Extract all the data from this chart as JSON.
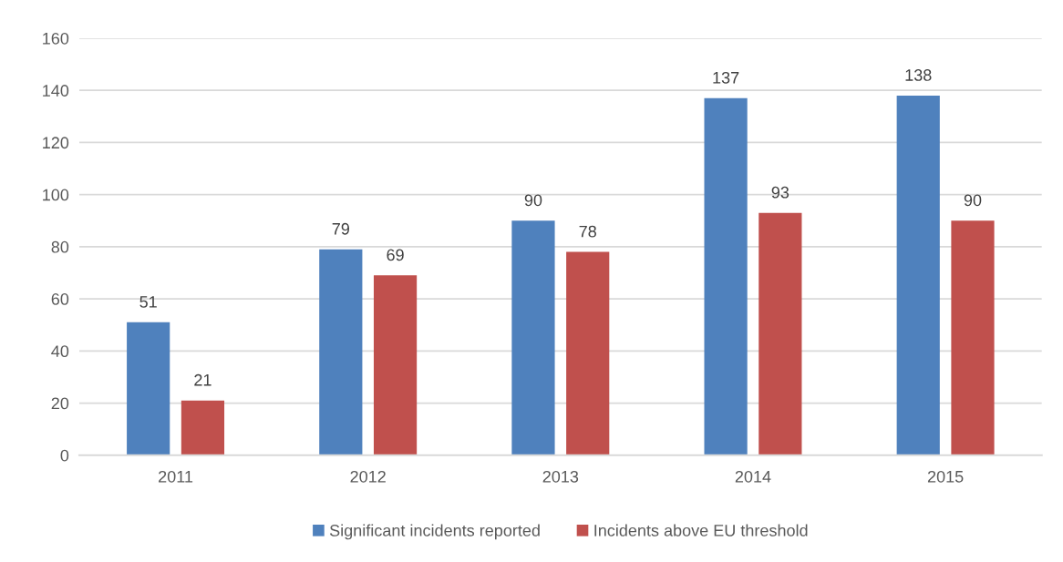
{
  "chart_data": {
    "type": "bar",
    "categories": [
      "2011",
      "2012",
      "2013",
      "2014",
      "2015"
    ],
    "series": [
      {
        "name": "Significant incidents reported",
        "color": "#4f81bd",
        "values": [
          51,
          79,
          90,
          137,
          138
        ]
      },
      {
        "name": "Incidents above EU threshold",
        "color": "#c0504d",
        "values": [
          21,
          69,
          78,
          93,
          90
        ]
      }
    ],
    "ylim": [
      0,
      160
    ],
    "yticks": [
      0,
      20,
      40,
      60,
      80,
      100,
      120,
      140,
      160
    ],
    "grid": "y",
    "legend": "bottom",
    "data_labels": true
  }
}
